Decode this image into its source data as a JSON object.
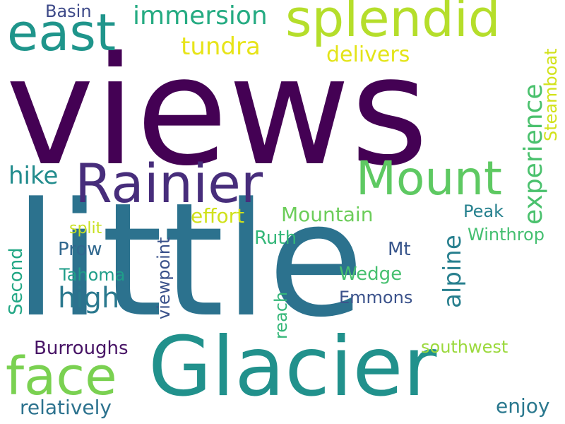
{
  "words": [
    {
      "id": "views",
      "text": "views",
      "color": "#440154",
      "orientation": "horizontal"
    },
    {
      "id": "little",
      "text": "little",
      "color": "#2c728e",
      "orientation": "horizontal"
    },
    {
      "id": "glacier",
      "text": "Glacier",
      "color": "#21918c",
      "orientation": "horizontal"
    },
    {
      "id": "rainier",
      "text": "Rainier",
      "color": "#472d7b",
      "orientation": "horizontal"
    },
    {
      "id": "splendid",
      "text": "splendid",
      "color": "#b5de2b",
      "orientation": "horizontal"
    },
    {
      "id": "east",
      "text": "east",
      "color": "#1f958b",
      "orientation": "horizontal"
    },
    {
      "id": "mount",
      "text": "Mount",
      "color": "#5ec962",
      "orientation": "horizontal"
    },
    {
      "id": "face",
      "text": "face",
      "color": "#7ad151",
      "orientation": "horizontal"
    },
    {
      "id": "high",
      "text": "high",
      "color": "#2a788e",
      "orientation": "horizontal"
    },
    {
      "id": "immersion",
      "text": "immersion",
      "color": "#25ab82",
      "orientation": "horizontal"
    },
    {
      "id": "tundra",
      "text": "tundra",
      "color": "#e7e419",
      "orientation": "horizontal"
    },
    {
      "id": "delivers",
      "text": "delivers",
      "color": "#e3e418",
      "orientation": "horizontal"
    },
    {
      "id": "basin",
      "text": "Basin",
      "color": "#3e4a89",
      "orientation": "horizontal"
    },
    {
      "id": "hike",
      "text": "hike",
      "color": "#228c8d",
      "orientation": "horizontal"
    },
    {
      "id": "effort",
      "text": "effort",
      "color": "#d0e11c",
      "orientation": "horizontal"
    },
    {
      "id": "mountain",
      "text": "Mountain",
      "color": "#6ccd5a",
      "orientation": "horizontal"
    },
    {
      "id": "peak",
      "text": "Peak",
      "color": "#26818e",
      "orientation": "horizontal"
    },
    {
      "id": "winthrop",
      "text": "Winthrop",
      "color": "#44bf70",
      "orientation": "horizontal"
    },
    {
      "id": "split",
      "text": "split",
      "color": "#c8e020",
      "orientation": "horizontal"
    },
    {
      "id": "ruth",
      "text": "Ruth",
      "color": "#35b779",
      "orientation": "horizontal"
    },
    {
      "id": "prow",
      "text": "Prow",
      "color": "#31688e",
      "orientation": "horizontal"
    },
    {
      "id": "mt",
      "text": "Mt",
      "color": "#39568c",
      "orientation": "horizontal"
    },
    {
      "id": "tahoma",
      "text": "Tahoma",
      "color": "#1f9e89",
      "orientation": "horizontal"
    },
    {
      "id": "wedge",
      "text": "Wedge",
      "color": "#46c06f",
      "orientation": "horizontal"
    },
    {
      "id": "emmons",
      "text": "Emmons",
      "color": "#3b528b",
      "orientation": "horizontal"
    },
    {
      "id": "burroughs",
      "text": "Burroughs",
      "color": "#471365",
      "orientation": "horizontal"
    },
    {
      "id": "southwest",
      "text": "southwest",
      "color": "#9bd93c",
      "orientation": "horizontal"
    },
    {
      "id": "relatively",
      "text": "relatively",
      "color": "#2c728e",
      "orientation": "horizontal"
    },
    {
      "id": "enjoy",
      "text": "enjoy",
      "color": "#2a788e",
      "orientation": "horizontal"
    },
    {
      "id": "experience",
      "text": "experience",
      "color": "#4ac16d",
      "orientation": "vertical"
    },
    {
      "id": "steamboat",
      "text": "Steamboat",
      "color": "#d2e21b",
      "orientation": "vertical"
    },
    {
      "id": "alpine",
      "text": "alpine",
      "color": "#277f8e",
      "orientation": "vertical"
    },
    {
      "id": "viewpoint",
      "text": "viewpoint",
      "color": "#3b528b",
      "orientation": "vertical"
    },
    {
      "id": "second",
      "text": "Second",
      "color": "#22a785",
      "orientation": "vertical"
    },
    {
      "id": "reach",
      "text": "reach",
      "color": "#35b779",
      "orientation": "vertical"
    }
  ]
}
